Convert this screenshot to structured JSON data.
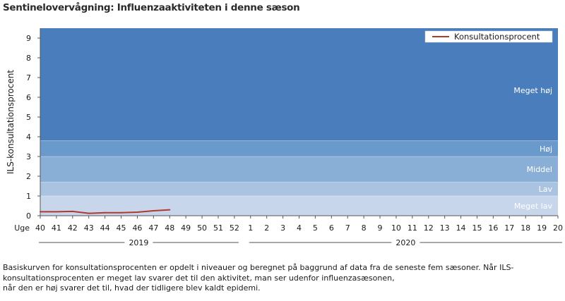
{
  "title": "Sentinelovervågning: Influenzaaktiviteten i denne sæson",
  "chart_data": {
    "type": "line",
    "title": "",
    "ylabel": "ILS-konsultationsprocent",
    "xlabel": "Uge",
    "ylim": [
      0,
      9.5
    ],
    "yticks": [
      0,
      1,
      2,
      3,
      4,
      5,
      6,
      7,
      8,
      9
    ],
    "categories": [
      "40",
      "41",
      "42",
      "43",
      "44",
      "45",
      "46",
      "47",
      "48",
      "49",
      "50",
      "51",
      "52",
      "1",
      "2",
      "3",
      "4",
      "5",
      "6",
      "7",
      "8",
      "9",
      "10",
      "11",
      "12",
      "13",
      "14",
      "15",
      "16",
      "17",
      "18",
      "19",
      "20"
    ],
    "year_groups": [
      {
        "label": "2019",
        "from": "40",
        "to": "52"
      },
      {
        "label": "2020",
        "from": "1",
        "to": "20"
      }
    ],
    "bands": [
      {
        "label": "Meget lav",
        "from": 0,
        "to": 1.0,
        "color": "#c7d6ea"
      },
      {
        "label": "Lav",
        "from": 1.0,
        "to": 1.7,
        "color": "#aac3e1"
      },
      {
        "label": "Middel",
        "from": 1.7,
        "to": 3.0,
        "color": "#8aafd7"
      },
      {
        "label": "Høj",
        "from": 3.0,
        "to": 3.8,
        "color": "#6a99cb"
      },
      {
        "label": "Meget høj",
        "from": 3.8,
        "to": 9.5,
        "color": "#4a7dbb"
      }
    ],
    "series": [
      {
        "name": "Konsultationsprocent",
        "color": "#b03a2e",
        "x": [
          "40",
          "41",
          "42",
          "43",
          "44",
          "45",
          "46",
          "47",
          "48"
        ],
        "values": [
          0.2,
          0.2,
          0.22,
          0.12,
          0.15,
          0.15,
          0.18,
          0.25,
          0.3
        ]
      }
    ],
    "legend": "top-right",
    "grid": false
  },
  "caption": {
    "line1": "Basiskurven for konsultationsprocenten er opdelt i niveauer og beregnet på baggrund af data fra de seneste fem sæsoner. Når ILS-konsultationsprocenten er meget lav svarer det til den aktivitet, man ser udenfor influenzasæsonen,",
    "line2": "når den er høj svarer det til, hvad der tidligere blev kaldt epidemi."
  }
}
